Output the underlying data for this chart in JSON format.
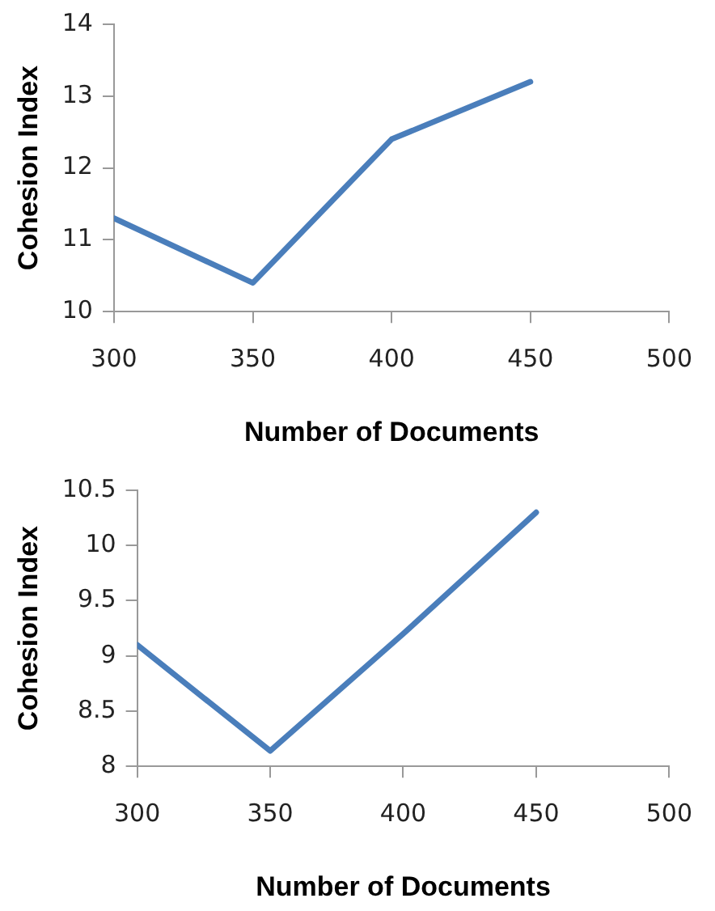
{
  "chart_data": [
    {
      "type": "line",
      "xlabel": "Number of Documents",
      "ylabel": "Cohesion Index",
      "x": [
        300,
        350,
        400,
        450
      ],
      "series": [
        {
          "color": "#4a7ebb",
          "values": [
            11.3,
            10.4,
            12.4,
            13.2
          ]
        }
      ],
      "xlim": [
        300,
        500
      ],
      "xticks": [
        300,
        350,
        400,
        450,
        500
      ],
      "ylim": [
        10,
        14
      ],
      "yticks": [
        10,
        11,
        12,
        13,
        14
      ],
      "grid": false,
      "legend": false,
      "marker": "none",
      "line_style": "solid"
    },
    {
      "type": "line",
      "xlabel": "Number of Documents",
      "ylabel": "Cohesion Index",
      "x": [
        300,
        350,
        400,
        450
      ],
      "series": [
        {
          "color": "#4a7ebb",
          "values": [
            9.1,
            8.14,
            9.2,
            10.3
          ]
        }
      ],
      "xlim": [
        300,
        500
      ],
      "xticks": [
        300,
        350,
        400,
        450,
        500
      ],
      "ylim": [
        8,
        10.5
      ],
      "yticks": [
        8,
        8.5,
        9,
        9.5,
        10,
        10.5
      ],
      "grid": false,
      "legend": false,
      "marker": "none",
      "line_style": "solid"
    }
  ]
}
